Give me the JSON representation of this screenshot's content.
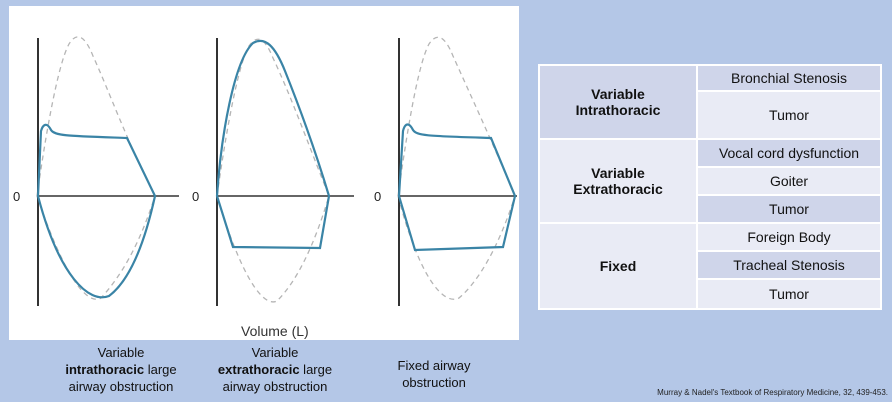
{
  "figure": {
    "zero_label": "0",
    "xlabel": "Volume (L)"
  },
  "captions": [
    {
      "line1": "Variable",
      "bold": "intrathoracic",
      "after_bold": " large",
      "line3": "airway obstruction"
    },
    {
      "line1": "Variable",
      "bold": "extrathoracic",
      "after_bold": " large",
      "line3": "airway obstruction"
    },
    {
      "line1": "Fixed airway",
      "line2": "obstruction"
    }
  ],
  "table": {
    "groups": [
      {
        "category_line1": "Variable",
        "category_line2": "Intrathoracic",
        "items": [
          "Bronchial Stenosis",
          "Tumor"
        ]
      },
      {
        "category_line1": "Variable",
        "category_line2": "Extrathoracic",
        "items": [
          "Vocal cord dysfunction",
          "Goiter",
          "Tumor"
        ]
      },
      {
        "category_line1": "Fixed",
        "category_line2": "",
        "items": [
          "Foreign Body",
          "Tracheal Stenosis",
          "Tumor"
        ]
      }
    ]
  },
  "citation": "Murray & Nadel's Textbook of Respiratory Medicine, 32, 439-453.",
  "colors": {
    "curve": "#3a84a6",
    "reference_dashed": "#b5b5b5",
    "axis": "#333333",
    "background": "#b4c7e7",
    "table_dark": "#cfd5ea",
    "table_light": "#e9ebf5"
  }
}
